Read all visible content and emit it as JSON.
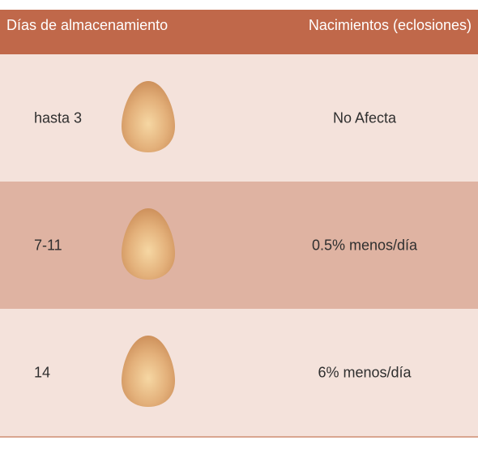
{
  "table": {
    "headers": {
      "days": "Días de almacenamiento",
      "births": "Nacimientos (eclosiones)"
    },
    "rows": [
      {
        "days": "hasta 3",
        "result": "No Afecta",
        "icon": "egg-icon"
      },
      {
        "days": "7-11",
        "result": "0.5% menos/día",
        "icon": "egg-icon"
      },
      {
        "days": "14",
        "result": "6% menos/día",
        "icon": "egg-icon"
      }
    ]
  },
  "colors": {
    "header_bg": "#c0684a",
    "row_light": "#f4e2db",
    "row_mid": "#dfb3a2",
    "egg": "#d9a06a"
  }
}
